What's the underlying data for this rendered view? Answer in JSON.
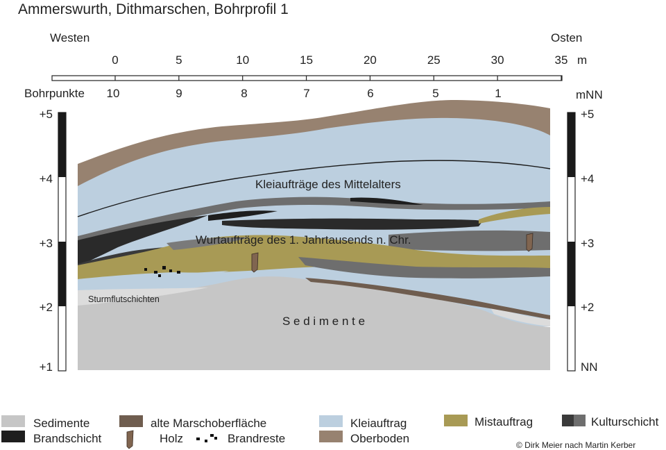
{
  "title": "Ammerswurth, Dithmarschen, Bohrprofil 1",
  "direction": {
    "west": "Westen",
    "east": "Osten"
  },
  "distance_scale": {
    "ticks": [
      "0",
      "5",
      "10",
      "15",
      "20",
      "25",
      "30",
      "35"
    ],
    "unit": "m"
  },
  "bohrpunkte": {
    "label": "Bohrpunkte",
    "points": [
      "10",
      "9",
      "8",
      "7",
      "6",
      "5",
      "1"
    ]
  },
  "height_scale": {
    "unit": "mNN",
    "left_labels": [
      "+5",
      "+4",
      "+3",
      "+2",
      "+1"
    ],
    "right_labels": [
      "+5",
      "+4",
      "+3",
      "+2",
      "NN"
    ]
  },
  "profile_labels": {
    "klei_upper": "Kleiaufträge des Mittelalters",
    "wurt": "Wurtaufträge des 1. Jahrtausends n. Chr.",
    "sturmflut": "Sturmflutschichten",
    "sedimente": "S e d i m e n t e"
  },
  "legend": [
    {
      "label": "Sedimente",
      "symbol": "swatch",
      "color": "#c6c6c6"
    },
    {
      "label": "alte Marschoberfläche",
      "symbol": "swatch",
      "color": "#6f5d4f"
    },
    {
      "label": "Kleiauftrag",
      "symbol": "swatch",
      "color": "#bccfdf"
    },
    {
      "label": "Mistauftrag",
      "symbol": "swatch",
      "color": "#a89a55"
    },
    {
      "label": "Kulturschicht",
      "symbol": "double-swatch",
      "color": "#3a3a3a",
      "color2": "#6e6e6e"
    },
    {
      "label": "Brandschicht",
      "symbol": "swatch",
      "color": "#1e1e1e"
    },
    {
      "label": "Holz",
      "symbol": "wood-icon",
      "color": "#806550"
    },
    {
      "label": "Brandreste",
      "symbol": "charcoal-icon",
      "color": "#111111"
    },
    {
      "label": "Oberboden",
      "symbol": "swatch",
      "color": "#978270"
    }
  ],
  "credit": "© Dirk Meier nach Martin Kerber"
}
